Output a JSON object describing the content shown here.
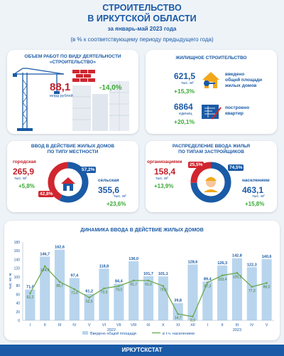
{
  "header": {
    "title_line1": "СТРОИТЕЛЬСТВО",
    "title_line2": "В ИРКУТСКОЙ ОБЛАСТИ",
    "period": "за январь-май 2023 года",
    "subtitle": "(в % к соответствующему периоду предыдущего года)"
  },
  "works": {
    "title_line1": "ОБЪЕМ РАБОТ ПО ВИДУ ДЕЯТЕЛЬНОСТИ",
    "title_line2": "«СТРОИТЕЛЬСТВО»",
    "value": "88,1",
    "unit": "млрд рублей",
    "change": "-14,0%"
  },
  "housing": {
    "title": "ЖИЛИЩНОЕ СТРОИТЕЛЬСТВО",
    "area_value": "621,5",
    "area_unit": "тыс. м²",
    "area_change": "+15,3%",
    "area_label_1": "введено",
    "area_label_2": "общей площади",
    "area_label_3": "жилых домов",
    "units_value": "6864",
    "units_unit": "единиц",
    "units_change": "+20,1%",
    "units_label_1": "построено",
    "units_label_2": "квартир"
  },
  "by_area": {
    "title_line1": "ВВОД В ДЕЙСТВИЕ ЖИЛЫХ ДОМОВ",
    "title_line2": "ПО ТИПУ МЕСТНОСТИ",
    "urban_label": "городская",
    "urban_value": "265,9",
    "urban_unit": "тыс. м²",
    "urban_change": "+5,8%",
    "urban_share_label": "42,8%",
    "urban_share": 42.8,
    "rural_label": "сельская",
    "rural_value": "355,6",
    "rural_unit": "тыс. м²",
    "rural_change": "+23,6%",
    "rural_share_label": "57,2%",
    "rural_share": 57.2,
    "colors": {
      "urban": "#d0262f",
      "rural": "#1a5aa6"
    }
  },
  "by_developer": {
    "title_line1": "РАСПРЕДЕЛЕНИЕ ВВОДА ЖИЛЬЯ",
    "title_line2": "ПО ТИПАМ ЗАСТРОЙЩИКОВ",
    "org_label": "организациями",
    "org_value": "158,4",
    "org_unit": "тыс. м²",
    "org_change": "+13,9%",
    "org_share_label": "25,5%",
    "org_share": 25.5,
    "pop_label": "населением",
    "pop_value": "463,1",
    "pop_unit": "тыс. м²",
    "pop_change": "+15,8%",
    "pop_share_label": "74,5%",
    "pop_share": 74.5,
    "colors": {
      "org": "#d0262f",
      "pop": "#1a5aa6"
    }
  },
  "chart_data": {
    "type": "bar",
    "title": "ДИНАМИКА ВВОДА В ДЕЙСТВИЕ ЖИЛЫХ ДОМОВ",
    "ylabel": "тыс. кв. м",
    "ylim": [
      0,
      180
    ],
    "yticks": [
      0,
      20,
      40,
      60,
      80,
      100,
      120,
      140,
      160,
      180
    ],
    "categories": [
      "I",
      "II",
      "III",
      "IV",
      "V",
      "VI",
      "VII",
      "VIII",
      "IX",
      "X",
      "XI",
      "XII",
      "I",
      "II",
      "III",
      "IV",
      "V"
    ],
    "year_labels": [
      {
        "label": "2022",
        "from": 0,
        "to": 11
      },
      {
        "label": "2023",
        "from": 12,
        "to": 16
      }
    ],
    "series": [
      {
        "name": "Введено общей площади",
        "type": "bar",
        "color": "#b9d5ee",
        "values": [
          71.0,
          146.7,
          162.6,
          97.4,
          61.2,
          118.8,
          84.4,
          136.0,
          101.7,
          101.1,
          39.8,
          128.6,
          89.4,
          126.3,
          142.8,
          122.3,
          140.6
        ]
      },
      {
        "name": "в т.ч. населением",
        "type": "line",
        "color": "#6aa84f",
        "values": [
          62.2,
          124.4,
          88.7,
          71.6,
          52.5,
          73.5,
          79.0,
          91.7,
          91.6,
          79.0,
          14.7,
          8.9,
          87.3,
          103.4,
          109.2,
          77.3,
          86.0
        ]
      }
    ],
    "grid": false,
    "legend": "bottom"
  },
  "footer": {
    "label": "ИРКУТСКСТАТ"
  }
}
